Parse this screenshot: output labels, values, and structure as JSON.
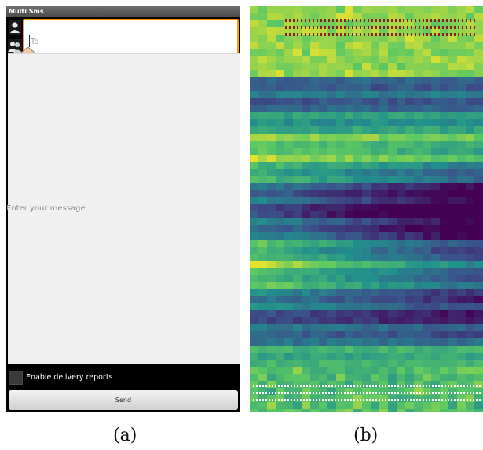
{
  "panel_a": {
    "title": "Multi Sms",
    "to_placeholder": "To",
    "message_placeholder": "Enter your message",
    "delivery_label": "Enable delivery reports",
    "send_label": "Send",
    "icons": [
      "contact-picker-icon",
      "group-picker-icon",
      "text-selection-handle-icon"
    ],
    "accent_color": "#ff9a00"
  },
  "panel_b": {
    "colormap": "viridis",
    "colors": [
      "#440154",
      "#3b528b",
      "#21918c",
      "#5ec962",
      "#fde725"
    ]
  },
  "captions": {
    "a": "(a)",
    "b": "(b)"
  }
}
